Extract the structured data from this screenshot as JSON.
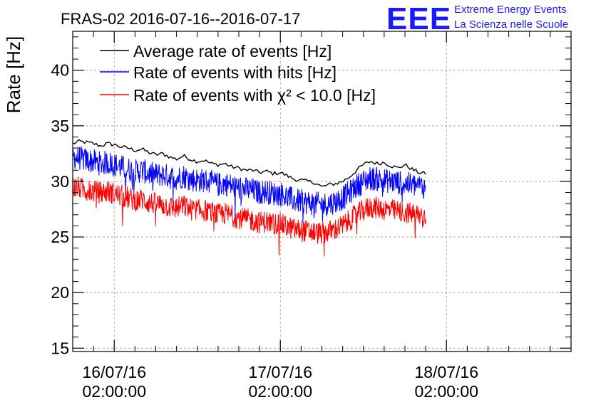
{
  "chart_data": {
    "type": "line",
    "title": "FRAS-02 2016-07-16--2016-07-17",
    "xlabel": "",
    "ylabel": "Rate [Hz]",
    "ylim": [
      14.7,
      43.5
    ],
    "xlim_hours": [
      -6,
      66
    ],
    "y_ticks": [
      "15",
      "20",
      "25",
      "30",
      "35",
      "40"
    ],
    "x_ticks": [
      {
        "hour": 0,
        "date": "16/07/16",
        "time": "02:00:00"
      },
      {
        "hour": 24,
        "date": "17/07/16",
        "time": "02:00:00"
      },
      {
        "hour": 48,
        "date": "18/07/16",
        "time": "02:00:00"
      }
    ],
    "grid": true,
    "legend_position": "top-left",
    "logo": {
      "big": "EEE",
      "line1": "Extreme Energy Events",
      "line2": "La Scienza nelle Scuole"
    },
    "series": [
      {
        "name": "Average rate of events [Hz]",
        "color": "#000000",
        "noise": 0,
        "x_hours": [
          -6,
          -5,
          -4,
          -3,
          -2,
          -1,
          0,
          1,
          2,
          3,
          4,
          5,
          6,
          7,
          8,
          9,
          10,
          11,
          12,
          13,
          14,
          15,
          16,
          17,
          18,
          19,
          20,
          21,
          22,
          23,
          24,
          25,
          26,
          27,
          28,
          29,
          30,
          31,
          32,
          33,
          34,
          35,
          36,
          37,
          38,
          39,
          40,
          41,
          42,
          43,
          44,
          45
        ],
        "values": [
          33.4,
          33.6,
          33.5,
          33.4,
          33.2,
          33.4,
          33.3,
          33.1,
          33.0,
          32.8,
          32.9,
          32.6,
          32.4,
          32.5,
          32.2,
          32.0,
          32.3,
          32.0,
          31.8,
          31.9,
          31.6,
          31.5,
          31.6,
          31.3,
          31.2,
          31.0,
          31.0,
          30.8,
          30.9,
          30.7,
          30.8,
          30.5,
          30.2,
          30.1,
          30.0,
          29.9,
          29.5,
          29.7,
          29.8,
          30.0,
          30.4,
          31.0,
          31.5,
          31.8,
          31.6,
          31.7,
          31.4,
          31.2,
          31.5,
          31.1,
          30.8,
          30.7
        ]
      },
      {
        "name": "Rate of events with hits [Hz]",
        "color": "#0000ff",
        "noise": 1.1,
        "x_hours": [
          -6,
          -5,
          -4,
          -3,
          -2,
          -1,
          0,
          1,
          2,
          3,
          4,
          5,
          6,
          7,
          8,
          9,
          10,
          11,
          12,
          13,
          14,
          15,
          16,
          17,
          18,
          19,
          20,
          21,
          22,
          23,
          24,
          25,
          26,
          27,
          28,
          29,
          30,
          31,
          32,
          33,
          34,
          35,
          36,
          37,
          38,
          39,
          40,
          41,
          42,
          43,
          44,
          45
        ],
        "values": [
          32.2,
          32.1,
          31.9,
          31.8,
          31.6,
          31.7,
          31.5,
          31.3,
          31.1,
          30.9,
          31.0,
          30.7,
          30.6,
          30.6,
          30.4,
          30.3,
          30.5,
          30.2,
          30.1,
          30.1,
          29.9,
          29.7,
          29.8,
          29.6,
          29.4,
          29.3,
          29.2,
          29.0,
          29.1,
          28.9,
          28.9,
          28.6,
          28.3,
          28.2,
          28.1,
          28.0,
          27.9,
          28.0,
          28.2,
          28.5,
          29.0,
          29.6,
          30.0,
          30.3,
          30.2,
          30.1,
          30.0,
          29.9,
          29.8,
          29.7,
          29.6,
          29.5
        ]
      },
      {
        "name": "Rate of events with χ² < 10.0 [Hz]",
        "color": "#ff0000",
        "noise": 1.0,
        "x_hours": [
          -6,
          -5,
          -4,
          -3,
          -2,
          -1,
          0,
          1,
          2,
          3,
          4,
          5,
          6,
          7,
          8,
          9,
          10,
          11,
          12,
          13,
          14,
          15,
          16,
          17,
          18,
          19,
          20,
          21,
          22,
          23,
          24,
          25,
          26,
          27,
          28,
          29,
          30,
          31,
          32,
          33,
          34,
          35,
          36,
          37,
          38,
          39,
          40,
          41,
          42,
          43,
          44,
          45
        ],
        "values": [
          29.5,
          29.4,
          29.2,
          29.1,
          29.0,
          29.1,
          28.9,
          28.7,
          28.5,
          28.3,
          28.4,
          28.1,
          28.0,
          27.9,
          27.7,
          27.6,
          27.8,
          27.5,
          27.4,
          27.4,
          27.2,
          27.0,
          27.1,
          26.9,
          26.7,
          26.6,
          26.5,
          26.3,
          26.4,
          26.2,
          26.2,
          25.9,
          25.7,
          25.6,
          25.5,
          25.4,
          25.3,
          25.5,
          25.7,
          26.0,
          26.5,
          27.0,
          27.4,
          27.7,
          27.6,
          27.5,
          27.4,
          27.3,
          27.2,
          27.1,
          27.0,
          26.9
        ]
      }
    ]
  }
}
